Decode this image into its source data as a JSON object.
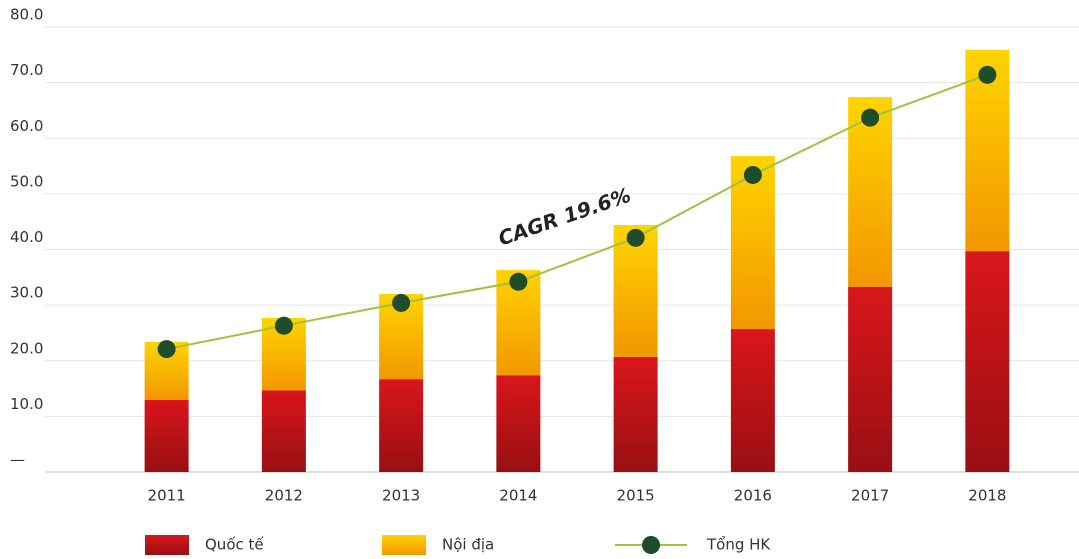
{
  "chart_data": {
    "type": "bar",
    "stacked": true,
    "categories": [
      "2011",
      "2012",
      "2013",
      "2014",
      "2015",
      "2016",
      "2017",
      "2018"
    ],
    "series": [
      {
        "name": "Quốc tế",
        "color": "#d9161b",
        "values": [
          13.0,
          14.7,
          16.7,
          17.4,
          20.7,
          25.7,
          33.3,
          39.7
        ]
      },
      {
        "name": "Nội địa",
        "color": "#ffd400",
        "values": [
          10.4,
          13.0,
          15.3,
          18.9,
          23.7,
          31.1,
          34.1,
          36.2
        ]
      },
      {
        "name": "Tổng HK",
        "type": "line",
        "color": "#9cc43c",
        "marker_color": "#1d4d2a",
        "values": [
          22.1,
          26.3,
          30.4,
          34.2,
          42.1,
          53.4,
          63.7,
          71.4
        ]
      }
    ],
    "ylim": [
      0,
      80
    ],
    "yticks": [
      {
        "value": 0,
        "label": "—"
      },
      {
        "value": 10,
        "label": "10.0"
      },
      {
        "value": 20,
        "label": "20.0"
      },
      {
        "value": 30,
        "label": "30.0"
      },
      {
        "value": 40,
        "label": "40.0"
      },
      {
        "value": 50,
        "label": "50.0"
      },
      {
        "value": 60,
        "label": "60.0"
      },
      {
        "value": 70,
        "label": "70.0"
      },
      {
        "value": 80,
        "label": "80.0"
      }
    ],
    "grid": true,
    "annotation": "CAGR 19.6%"
  }
}
